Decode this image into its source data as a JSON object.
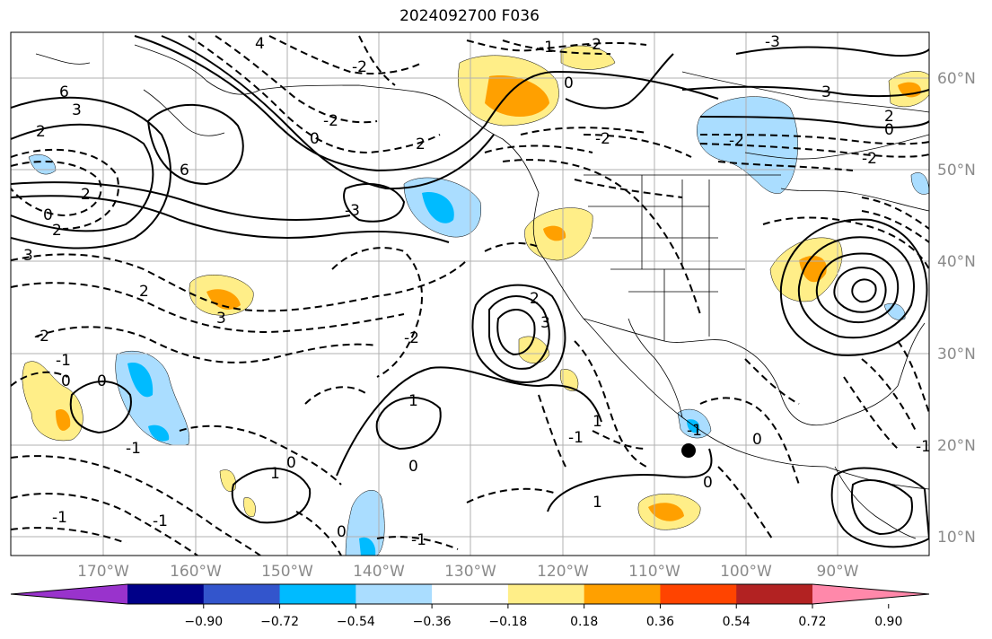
{
  "title": "2024092700 F036",
  "longitude_labels": [
    "170°W",
    "160°W",
    "150°W",
    "140°W",
    "130°W",
    "120°W",
    "110°W",
    "100°W",
    "90°W"
  ],
  "latitude_labels": [
    "60°N",
    "50°N",
    "40°N",
    "30°N",
    "20°N",
    "10°N"
  ],
  "colorbar": {
    "labels": [
      "−0.90",
      "−0.72",
      "−0.54",
      "−0.36",
      "−0.18",
      "0.18",
      "0.36",
      "0.54",
      "0.72",
      "0.90"
    ],
    "colors": [
      "#9933cc",
      "#000088",
      "#3355cc",
      "#00bbff",
      "#aaddff",
      "#ffffff",
      "#ffee88",
      "#ffa000",
      "#ff4400",
      "#b22222",
      "#ff88aa"
    ]
  },
  "contour_labels": [
    "4",
    "6",
    "6",
    "3",
    "2",
    "2",
    "0",
    "2",
    "3",
    "-3",
    "-2",
    "-2",
    "0",
    "2",
    "-1",
    "-2",
    "0",
    "-2",
    "2",
    "3",
    "-3",
    "-2",
    "-2",
    "0",
    "3",
    "2",
    "0",
    "0",
    "-1",
    "-2",
    "-1",
    "1",
    "-2",
    "-1",
    "-1",
    "0",
    "0",
    "1",
    "-1",
    "0",
    "3",
    "2",
    "1",
    "-1",
    "1",
    "0",
    "-1",
    "-1",
    "0"
  ],
  "marker": "storm-center"
}
